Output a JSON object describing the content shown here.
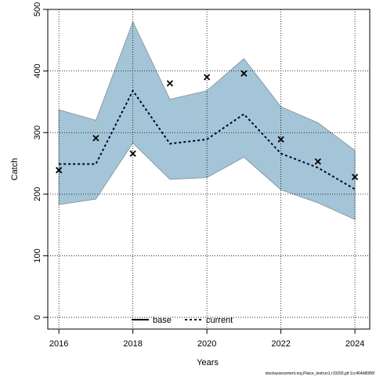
{
  "chart_data": {
    "type": "line",
    "xlabel": "Years",
    "ylabel": "Catch",
    "footer": "stockassessment.org,Plaice_testrun1,r19393,git:1cc464b8086f",
    "x": [
      2016,
      2017,
      2018,
      2019,
      2020,
      2021,
      2022,
      2023,
      2024
    ],
    "band": {
      "color": "#a4c5d8",
      "lower": [
        183,
        192,
        283,
        224,
        227,
        260,
        207,
        186,
        159
      ],
      "upper": [
        337,
        320,
        480,
        354,
        368,
        420,
        342,
        316,
        271
      ]
    },
    "series": [
      {
        "name": "current",
        "color": "#000033",
        "values": [
          249,
          249,
          368,
          282,
          289,
          330,
          266,
          243,
          208
        ]
      }
    ],
    "observed": [
      239,
      291,
      266,
      380,
      390,
      396,
      289,
      253,
      228
    ],
    "legend": [
      {
        "name": "base",
        "color": "#000000"
      },
      {
        "name": "current",
        "color": "#000033"
      }
    ],
    "xlim": [
      2015.7,
      2024.4
    ],
    "ylim": [
      -19,
      500
    ],
    "xticks": [
      2016,
      2018,
      2020,
      2022,
      2024
    ],
    "yticks": [
      0,
      100,
      200,
      300,
      400,
      500
    ],
    "grid": true
  }
}
